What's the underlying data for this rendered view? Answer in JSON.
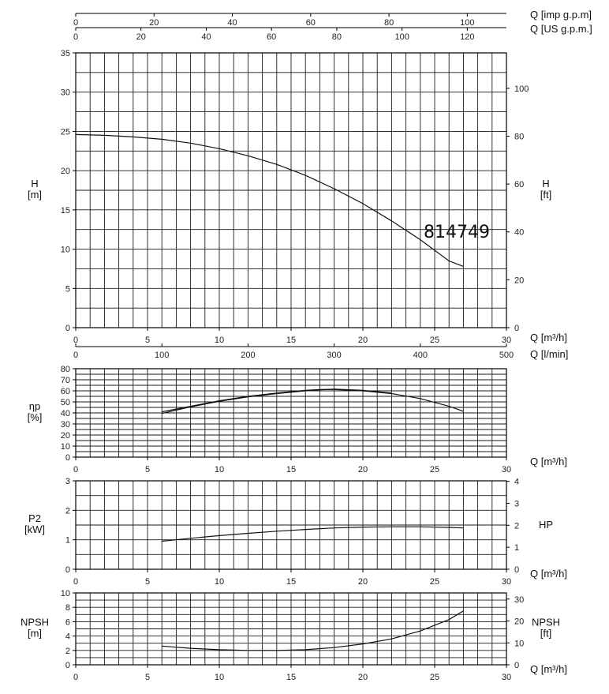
{
  "model_label": "814749",
  "top_axes": {
    "imp_gpm": {
      "label": "Q [imp g.p.m]",
      "min": 0,
      "max": 110,
      "ticks": [
        0,
        20,
        40,
        60,
        80,
        100
      ]
    },
    "us_gpm": {
      "label": "Q [US g.p.m.]",
      "min": 0,
      "max": 132,
      "ticks": [
        0,
        20,
        40,
        60,
        80,
        100,
        120
      ]
    }
  },
  "chart_data": [
    {
      "type": "line",
      "name": "head",
      "xlabel": "Q [m³/h]",
      "x2label": "Q [l/min]",
      "ylabel": "H\n[m]",
      "y2label": "H\n[ft]",
      "xlim": [
        0,
        30
      ],
      "ylim": [
        0,
        35
      ],
      "xticks": [
        0,
        5,
        10,
        15,
        20,
        25,
        30
      ],
      "x2ticks": [
        0,
        100,
        200,
        300,
        400,
        500
      ],
      "x2lim": [
        0,
        500
      ],
      "yticks": [
        0,
        5,
        10,
        15,
        20,
        25,
        30,
        35
      ],
      "y2lim": [
        0,
        114.8
      ],
      "y2ticks": [
        0,
        20,
        40,
        60,
        80,
        100
      ],
      "grid": true,
      "series": [
        {
          "x": [
            0,
            2,
            4,
            6,
            8,
            10,
            12,
            14,
            16,
            18,
            20,
            22,
            24,
            26,
            27
          ],
          "y": [
            24.6,
            24.5,
            24.3,
            24.0,
            23.5,
            22.8,
            21.9,
            20.8,
            19.4,
            17.7,
            15.8,
            13.6,
            11.2,
            8.5,
            7.8
          ]
        }
      ]
    },
    {
      "type": "line",
      "name": "efficiency",
      "xlabel": "Q [m³/h]",
      "ylabel": "ηp\n[%]",
      "xlim": [
        0,
        30
      ],
      "ylim": [
        0,
        80
      ],
      "xticks": [
        0,
        5,
        10,
        15,
        20,
        25,
        30
      ],
      "yticks": [
        0,
        10,
        20,
        30,
        40,
        50,
        60,
        70,
        80
      ],
      "grid": true,
      "series": [
        {
          "x": [
            6,
            8,
            10,
            12,
            14,
            16,
            17,
            18,
            20,
            22,
            24,
            26,
            27
          ],
          "y": [
            41,
            46,
            51,
            55,
            58,
            60.5,
            61.2,
            61.2,
            60,
            57.5,
            53,
            46,
            41.5
          ]
        },
        {
          "x": [
            6,
            8,
            10,
            12,
            14,
            16,
            17,
            18,
            20,
            22
          ],
          "y": [
            39.5,
            45.5,
            50.5,
            54.5,
            57.5,
            60,
            61,
            61.5,
            60.5,
            58
          ]
        }
      ]
    },
    {
      "type": "line",
      "name": "power",
      "xlabel": "Q [m³/h]",
      "ylabel": "P2\n[kW]",
      "y2label": "HP",
      "xlim": [
        0,
        30
      ],
      "ylim": [
        0,
        3
      ],
      "xticks": [
        0,
        5,
        10,
        15,
        20,
        25,
        30
      ],
      "yticks": [
        0,
        1,
        2,
        3
      ],
      "y2lim": [
        0,
        4.023
      ],
      "y2ticks": [
        0,
        1,
        2,
        3,
        4
      ],
      "grid": true,
      "series": [
        {
          "x": [
            6,
            8,
            10,
            12,
            14,
            16,
            18,
            20,
            22,
            24,
            26,
            27
          ],
          "y": [
            0.95,
            1.05,
            1.14,
            1.22,
            1.29,
            1.35,
            1.4,
            1.43,
            1.44,
            1.44,
            1.42,
            1.4
          ]
        }
      ]
    },
    {
      "type": "line",
      "name": "npsh",
      "xlabel": "Q [m³/h]",
      "ylabel": "NPSH\n[m]",
      "y2label": "NPSH\n[ft]",
      "xlim": [
        0,
        30
      ],
      "ylim": [
        0,
        10
      ],
      "xticks": [
        0,
        5,
        10,
        15,
        20,
        25,
        30
      ],
      "yticks": [
        0,
        2,
        4,
        6,
        8,
        10
      ],
      "y2lim": [
        0,
        32.8
      ],
      "y2ticks": [
        0,
        10,
        20,
        30
      ],
      "grid": true,
      "series": [
        {
          "x": [
            6,
            8,
            10,
            12,
            14,
            16,
            18,
            20,
            22,
            24,
            26,
            27
          ],
          "y": [
            2.6,
            2.3,
            2.1,
            2.0,
            2.0,
            2.1,
            2.4,
            2.9,
            3.6,
            4.7,
            6.3,
            7.5
          ]
        }
      ]
    }
  ]
}
